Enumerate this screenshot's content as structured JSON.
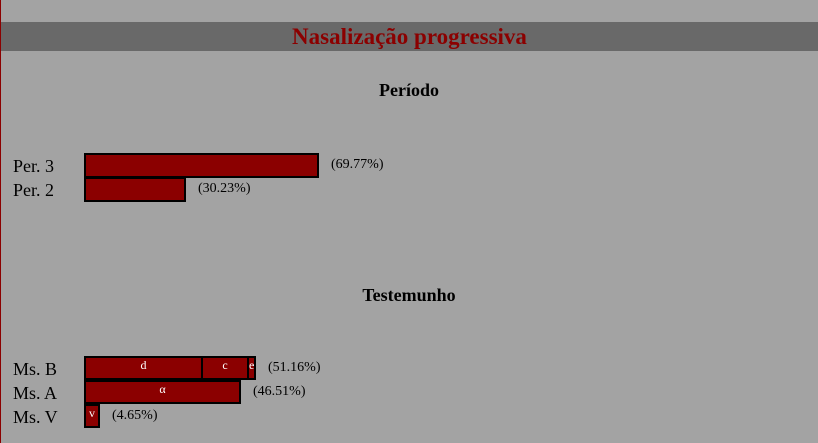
{
  "header": {
    "title": "Nasalização progressiva"
  },
  "chart_data": [
    {
      "type": "bar",
      "orientation": "horizontal",
      "title": "Período",
      "categories": [
        "Per. 3",
        "Per. 2"
      ],
      "values": [
        69.77,
        30.23
      ],
      "value_labels": [
        "(69.77%)",
        "(30.23%)"
      ],
      "segments": [
        [],
        []
      ],
      "bar_color": "#8b0000",
      "xlim": [
        0,
        100
      ],
      "grid": false
    },
    {
      "type": "bar",
      "orientation": "horizontal",
      "stacked": true,
      "title": "Testemunho",
      "categories": [
        "Ms. B",
        "Ms. A",
        "Ms. V"
      ],
      "values": [
        51.16,
        46.51,
        4.65
      ],
      "value_labels": [
        "(51.16%)",
        "(46.51%)",
        "(4.65%)"
      ],
      "segments": [
        [
          {
            "label": "d",
            "value": 34.9
          },
          {
            "label": "c",
            "value": 13.9
          },
          {
            "label": "e",
            "value": 2.36
          }
        ],
        [
          {
            "label": "α",
            "value": 46.51
          }
        ],
        [
          {
            "label": "v",
            "value": 4.65
          }
        ]
      ],
      "bar_color": "#8b0000",
      "xlim": [
        0,
        100
      ],
      "grid": false
    }
  ]
}
